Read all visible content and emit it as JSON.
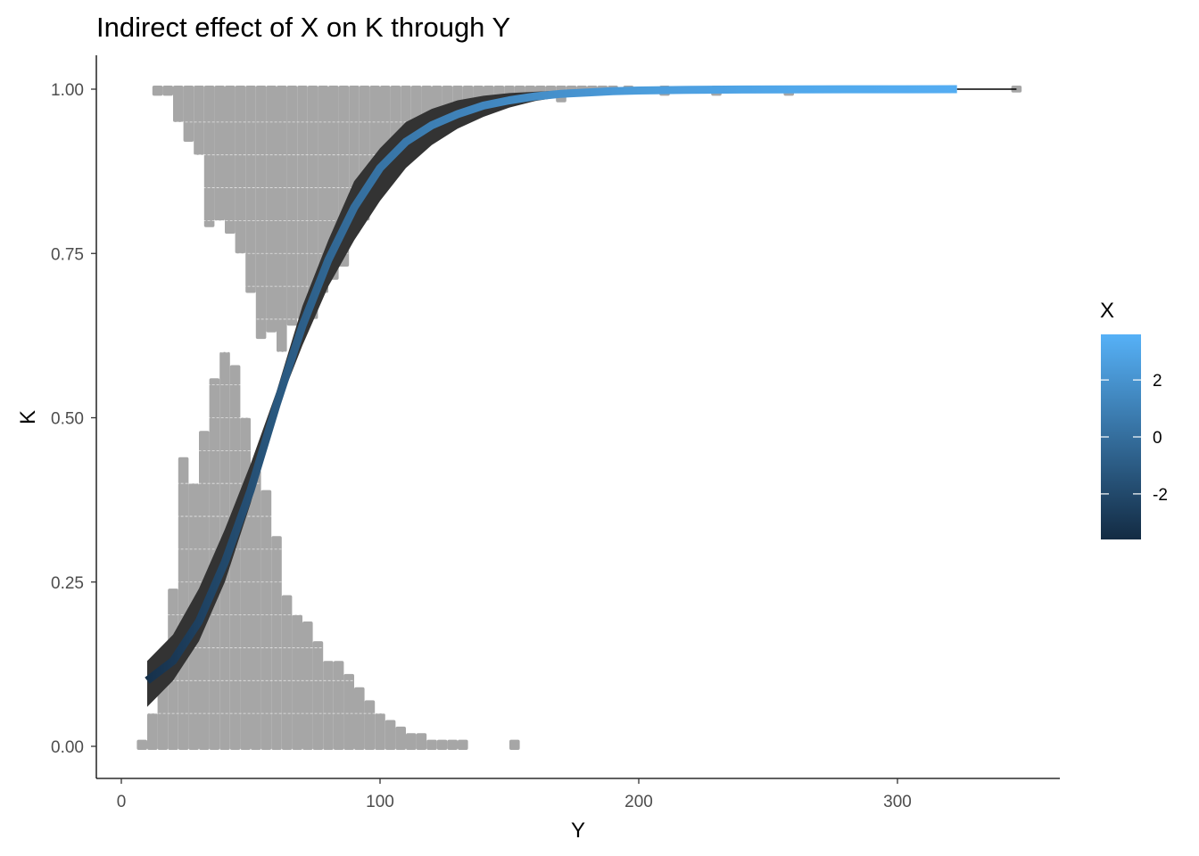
{
  "chart_data": {
    "type": "line",
    "title": "Indirect effect of X on K through Y",
    "xlabel": "Y",
    "ylabel": "K",
    "xlim": [
      -10,
      362
    ],
    "ylim": [
      -0.05,
      1.05
    ],
    "x_ticks": [
      0,
      100,
      200,
      300
    ],
    "x_tick_labels": [
      "0",
      "100",
      "200",
      "300"
    ],
    "y_ticks": [
      0,
      0.25,
      0.5,
      0.75,
      1
    ],
    "y_tick_labels": [
      "0.00",
      "0.25",
      "0.50",
      "0.75",
      "1.00"
    ],
    "grid": false,
    "legend": {
      "title": "X",
      "position": "right",
      "type": "colorbar",
      "ticks": [
        2,
        0,
        -2
      ],
      "tick_labels": [
        "2",
        "0",
        "-2"
      ],
      "range": [
        -3.6,
        3.6
      ],
      "low_color": "#132b43",
      "high_color": "#56b1f7"
    },
    "fit_line": {
      "name": "",
      "x": [
        10,
        20,
        30,
        40,
        50,
        60,
        70,
        80,
        90,
        100,
        110,
        120,
        130,
        140,
        150,
        160,
        170,
        180,
        190,
        200,
        220,
        240,
        260,
        280,
        300,
        323
      ],
      "y": [
        0.1,
        0.13,
        0.19,
        0.28,
        0.39,
        0.52,
        0.64,
        0.74,
        0.82,
        0.88,
        0.92,
        0.945,
        0.962,
        0.975,
        0.983,
        0.989,
        0.993,
        0.995,
        0.997,
        0.998,
        0.999,
        0.9995,
        0.9997,
        0.9998,
        0.9999,
        1.0
      ],
      "x_color": [
        -3.3,
        -2.9,
        -2.4,
        -2.0,
        -1.6,
        -1.2,
        -0.8,
        -0.4,
        0.0,
        0.3,
        0.6,
        0.9,
        1.1,
        1.3,
        1.5,
        1.7,
        1.9,
        2.1,
        2.3,
        2.5,
        2.7,
        2.9,
        3.1,
        3.2,
        3.3,
        3.4
      ],
      "ci_lower": [
        0.06,
        0.1,
        0.16,
        0.25,
        0.37,
        0.51,
        0.61,
        0.7,
        0.77,
        0.83,
        0.88,
        0.915,
        0.94,
        0.958,
        0.972,
        0.982,
        0.988,
        0.992,
        0.995,
        0.997,
        0.998,
        0.999,
        0.9995,
        0.9997,
        0.9998,
        0.9999
      ],
      "ci_upper": [
        0.13,
        0.17,
        0.24,
        0.33,
        0.43,
        0.54,
        0.67,
        0.77,
        0.86,
        0.91,
        0.95,
        0.97,
        0.983,
        0.99,
        0.994,
        0.996,
        0.998,
        0.999,
        0.9995,
        0.9997,
        0.9998,
        0.9999,
        1.0,
        1.0,
        1.0,
        1.0
      ]
    },
    "extension_line": {
      "x": [
        323,
        346
      ],
      "y": [
        1.0,
        1.0
      ]
    },
    "top_histogram": {
      "label": "K = 1",
      "bin_width": 4,
      "bins_x": [
        14,
        18,
        22,
        26,
        30,
        34,
        38,
        42,
        46,
        50,
        54,
        58,
        62,
        66,
        70,
        74,
        78,
        82,
        86,
        90,
        94,
        98,
        102,
        106,
        110,
        114,
        118,
        122,
        126,
        130,
        134,
        138,
        142,
        146,
        150,
        154,
        158,
        162,
        166,
        170,
        174,
        178,
        182,
        186,
        190,
        196,
        210,
        230,
        258,
        346
      ],
      "bins_h": [
        0.01,
        0.01,
        0.05,
        0.08,
        0.1,
        0.21,
        0.2,
        0.22,
        0.25,
        0.31,
        0.38,
        0.37,
        0.4,
        0.36,
        0.35,
        0.35,
        0.31,
        0.29,
        0.27,
        0.22,
        0.2,
        0.16,
        0.14,
        0.12,
        0.11,
        0.09,
        0.08,
        0.07,
        0.06,
        0.05,
        0.04,
        0.035,
        0.03,
        0.025,
        0.02,
        0.018,
        0.015,
        0.012,
        0.01,
        0.02,
        0.01,
        0.008,
        0.007,
        0.006,
        0.005,
        0.004,
        0.01,
        0.01,
        0.01,
        0.005
      ]
    },
    "bottom_histogram": {
      "label": "K = 0",
      "bin_width": 4,
      "bins_x": [
        8,
        12,
        16,
        20,
        24,
        28,
        32,
        36,
        40,
        44,
        48,
        52,
        56,
        60,
        64,
        68,
        72,
        76,
        80,
        84,
        88,
        92,
        96,
        100,
        104,
        108,
        112,
        116,
        120,
        124,
        128,
        132,
        152
      ],
      "bins_h": [
        0.01,
        0.05,
        0.1,
        0.24,
        0.44,
        0.4,
        0.48,
        0.56,
        0.6,
        0.58,
        0.5,
        0.42,
        0.39,
        0.32,
        0.23,
        0.2,
        0.19,
        0.16,
        0.13,
        0.13,
        0.11,
        0.09,
        0.07,
        0.05,
        0.04,
        0.03,
        0.02,
        0.02,
        0.01,
        0.01,
        0.01,
        0.01,
        0.01
      ]
    }
  }
}
